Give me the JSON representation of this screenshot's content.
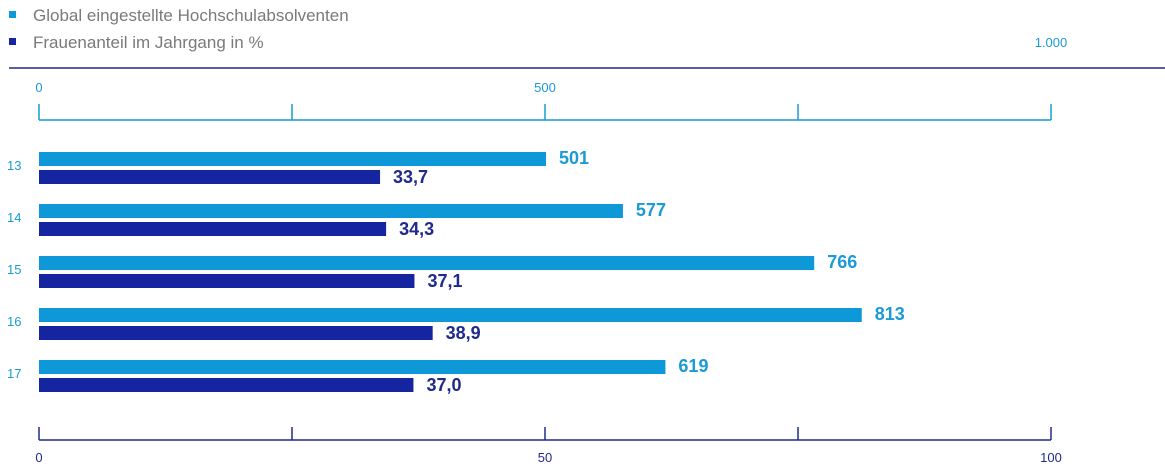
{
  "colors": {
    "graduates": "#0f98d8",
    "women_share": "#1525a0",
    "axis_top": "#1a9ad6",
    "axis_bottom": "#1f2a8a"
  },
  "chart_data": {
    "type": "bar",
    "orientation": "horizontal",
    "categories": [
      "13",
      "14",
      "15",
      "16",
      "17"
    ],
    "series": [
      {
        "name": "Global eingestellte Hochschulabsolventen",
        "values": [
          501,
          577,
          766,
          813,
          619
        ],
        "labels": [
          "501",
          "577",
          "766",
          "813",
          "619"
        ],
        "axis": "top"
      },
      {
        "name": "Frauenanteil im Jahrgang in %",
        "values": [
          33.7,
          34.3,
          37.1,
          38.9,
          37.0
        ],
        "labels": [
          "33,7",
          "34,3",
          "37,1",
          "38,9",
          "37,0"
        ],
        "axis": "bottom"
      }
    ],
    "axis_top": {
      "range": [
        0,
        1000
      ],
      "ticks": [
        0,
        250,
        500,
        750,
        1000
      ],
      "tick_labels": [
        "0",
        "",
        "500",
        "",
        "1.000"
      ]
    },
    "axis_bottom": {
      "range": [
        0,
        100
      ],
      "ticks": [
        0,
        25,
        50,
        75,
        100
      ],
      "tick_labels": [
        "0",
        "",
        "50",
        "",
        "100"
      ]
    },
    "legend_position": "top-left",
    "grid": false
  }
}
